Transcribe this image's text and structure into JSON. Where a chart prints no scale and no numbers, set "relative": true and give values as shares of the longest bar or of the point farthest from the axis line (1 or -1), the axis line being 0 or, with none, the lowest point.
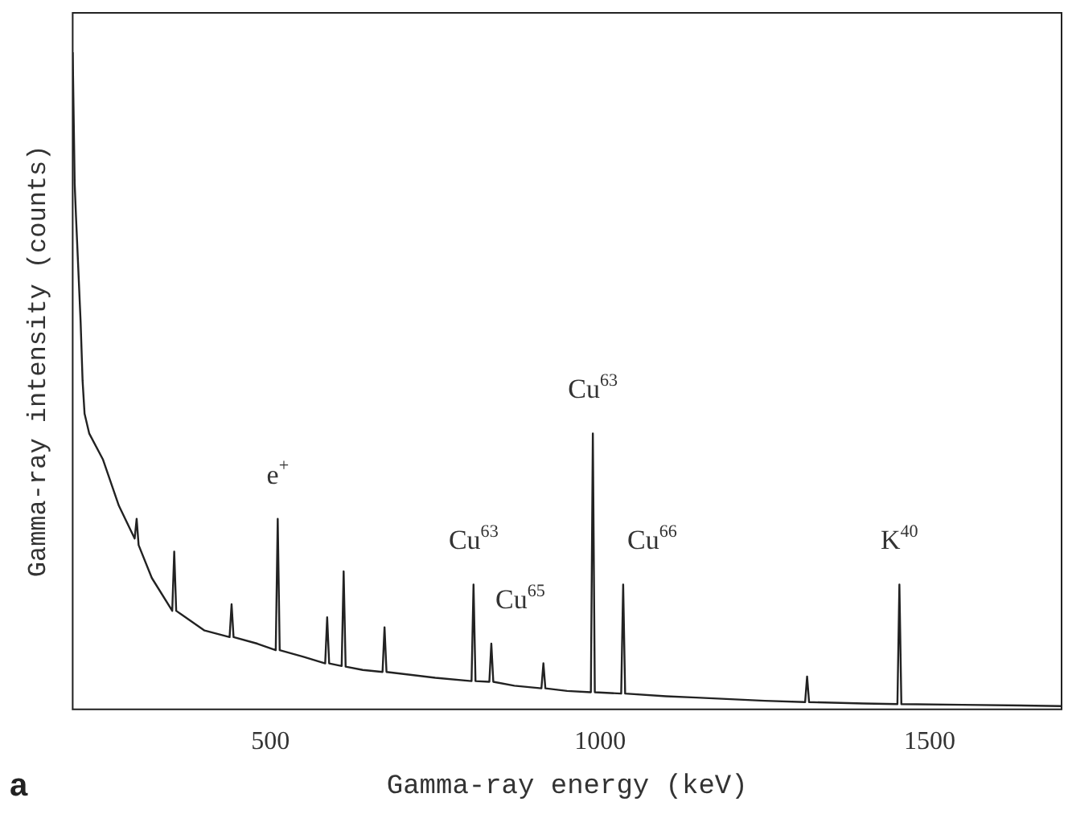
{
  "chart_data": {
    "type": "line",
    "xlabel": "Gamma-ray energy (keV)",
    "ylabel": "Gamma-ray intensity (counts)",
    "relative": true,
    "xlim": [
      200,
      1700
    ],
    "xticks": [
      500,
      1000,
      1500
    ],
    "grid": false,
    "legend": false,
    "marker": "none",
    "line_style": "solid",
    "series": [
      {
        "color": "#222222",
        "x": [
          200,
          203,
          205,
          212,
          215,
          218,
          225,
          246,
          270,
          294,
          297,
          300,
          320,
          351,
          354,
          357,
          400,
          438,
          441,
          444,
          480,
          508,
          511,
          514,
          550,
          583,
          586,
          589,
          608,
          611,
          614,
          640,
          670,
          673,
          676,
          750,
          805,
          808,
          811,
          832,
          835,
          838,
          870,
          911,
          914,
          917,
          950,
          986,
          989,
          992,
          1032,
          1035,
          1038,
          1100,
          1146,
          1250,
          1311,
          1314,
          1317,
          1400,
          1451,
          1454,
          1457,
          1550,
          1700
        ],
        "values": [
          1.0,
          0.8,
          0.75,
          0.59,
          0.5,
          0.45,
          0.42,
          0.38,
          0.31,
          0.26,
          0.29,
          0.25,
          0.2,
          0.15,
          0.24,
          0.15,
          0.12,
          0.11,
          0.16,
          0.11,
          0.1,
          0.09,
          0.29,
          0.09,
          0.08,
          0.07,
          0.14,
          0.07,
          0.066,
          0.21,
          0.065,
          0.06,
          0.057,
          0.125,
          0.057,
          0.048,
          0.043,
          0.19,
          0.043,
          0.042,
          0.1,
          0.042,
          0.036,
          0.032,
          0.07,
          0.032,
          0.028,
          0.026,
          0.42,
          0.026,
          0.024,
          0.19,
          0.024,
          0.02,
          0.018,
          0.013,
          0.011,
          0.05,
          0.011,
          0.009,
          0.008,
          0.19,
          0.008,
          0.007,
          0.005
        ]
      }
    ],
    "annotations": [
      {
        "text": "e$^{+}$",
        "x": 511,
        "y": 0.29
      },
      {
        "text": "Cu$^{63}$",
        "x": 989,
        "y": 0.42
      },
      {
        "text": "Cu$^{63}$",
        "x": 808,
        "y": 0.19
      },
      {
        "text": "Cu$^{65}$",
        "x": 835,
        "y": 0.1
      },
      {
        "text": "Cu$^{66}$",
        "x": 1035,
        "y": 0.19
      },
      {
        "text": "K$^{40}$",
        "x": 1454,
        "y": 0.19
      },
      "a"
    ]
  }
}
